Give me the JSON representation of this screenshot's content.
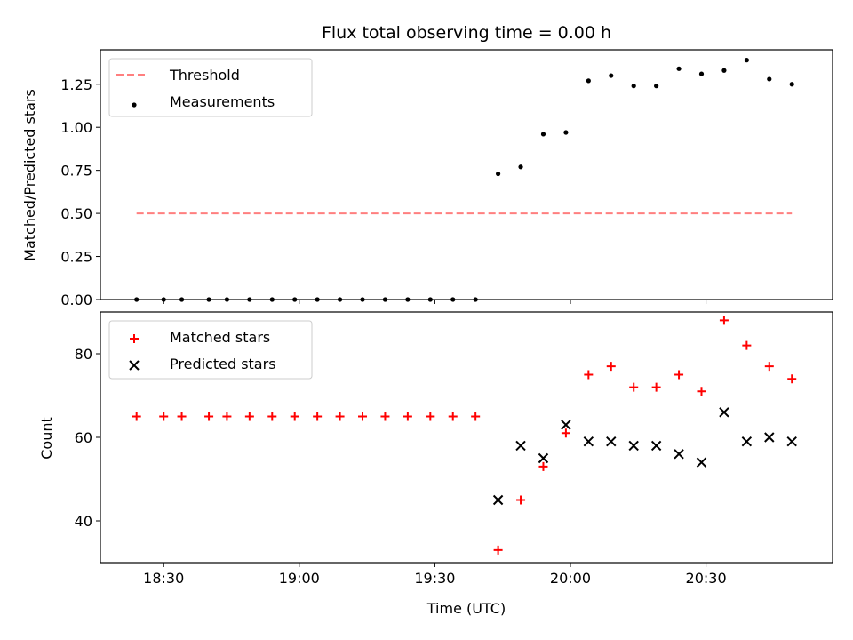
{
  "title": "Flux total observing time = 0.00 h",
  "colors": {
    "threshold": "#ff7f7f",
    "measurements": "#000000",
    "matched": "#ff0000",
    "predicted": "#000000"
  },
  "chart_data": [
    {
      "type": "scatter",
      "title": "Flux total observing time = 0.00 h",
      "ylabel": "Matched/Predicted stars",
      "xlabel": "",
      "xlim": [
        "18:16",
        "20:58"
      ],
      "ylim": [
        0,
        1.45
      ],
      "yticks": [
        0.0,
        0.25,
        0.5,
        0.75,
        1.0,
        1.25
      ],
      "ytick_labels": [
        "0.00",
        "0.25",
        "0.50",
        "0.75",
        "1.00",
        "1.25"
      ],
      "legend_position": "upper-left",
      "series": [
        {
          "name": "Threshold",
          "kind": "dashed-line",
          "x": [
            "18:24",
            "20:49"
          ],
          "y": [
            0.5,
            0.5
          ]
        },
        {
          "name": "Measurements",
          "kind": "dots",
          "x": [
            "18:24",
            "18:30",
            "18:34",
            "18:40",
            "18:44",
            "18:49",
            "18:54",
            "18:59",
            "19:04",
            "19:09",
            "19:14",
            "19:19",
            "19:24",
            "19:29",
            "19:34",
            "19:39",
            "19:44",
            "19:49",
            "19:54",
            "19:59",
            "20:04",
            "20:09",
            "20:14",
            "20:19",
            "20:24",
            "20:29",
            "20:34",
            "20:39",
            "20:44",
            "20:49"
          ],
          "y": [
            0,
            0,
            0,
            0,
            0,
            0,
            0,
            0,
            0,
            0,
            0,
            0,
            0,
            0,
            0,
            0,
            0.73,
            0.77,
            0.96,
            0.97,
            1.27,
            1.3,
            1.24,
            1.24,
            1.34,
            1.31,
            1.33,
            1.39,
            1.28,
            1.25
          ]
        }
      ]
    },
    {
      "type": "scatter",
      "ylabel": "Count",
      "xlabel": "Time (UTC)",
      "xlim": [
        "18:16",
        "20:58"
      ],
      "ylim": [
        30,
        90
      ],
      "yticks": [
        40,
        60,
        80
      ],
      "ytick_labels": [
        "40",
        "60",
        "80"
      ],
      "xticks": [
        "18:30",
        "19:00",
        "19:30",
        "20:00",
        "20:30"
      ],
      "xtick_labels": [
        "18:30",
        "19:00",
        "19:30",
        "20:00",
        "20:30"
      ],
      "legend_position": "upper-left",
      "series": [
        {
          "name": "Matched stars",
          "kind": "plus",
          "x": [
            "18:24",
            "18:30",
            "18:34",
            "18:40",
            "18:44",
            "18:49",
            "18:54",
            "18:59",
            "19:04",
            "19:09",
            "19:14",
            "19:19",
            "19:24",
            "19:29",
            "19:34",
            "19:39",
            "19:44",
            "19:49",
            "19:54",
            "19:59",
            "20:04",
            "20:09",
            "20:14",
            "20:19",
            "20:24",
            "20:29",
            "20:34",
            "20:39",
            "20:44",
            "20:49"
          ],
          "y": [
            65,
            65,
            65,
            65,
            65,
            65,
            65,
            65,
            65,
            65,
            65,
            65,
            65,
            65,
            65,
            65,
            33,
            45,
            53,
            61,
            75,
            77,
            72,
            72,
            75,
            71,
            88,
            82,
            77,
            74
          ]
        },
        {
          "name": "Predicted stars",
          "kind": "x",
          "x": [
            "19:44",
            "19:49",
            "19:54",
            "19:59",
            "20:04",
            "20:09",
            "20:14",
            "20:19",
            "20:24",
            "20:29",
            "20:34",
            "20:39",
            "20:44",
            "20:49"
          ],
          "y": [
            45,
            58,
            55,
            63,
            59,
            59,
            58,
            58,
            56,
            54,
            66,
            59,
            60,
            59
          ]
        }
      ]
    }
  ]
}
